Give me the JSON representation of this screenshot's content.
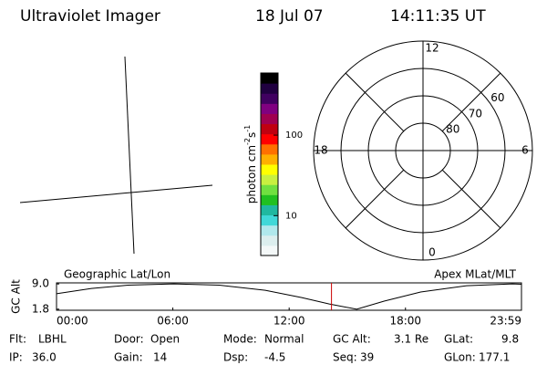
{
  "header": {
    "title": "Ultraviolet Imager",
    "date": "18 Jul 07",
    "time": "14:11:35 UT"
  },
  "colorbar": {
    "type": "colorbar",
    "label": "photon cm",
    "label_exp1": "-2",
    "label_mid": "s",
    "label_exp2": "-1",
    "log": true,
    "ylim": [
      3.2,
      590
    ],
    "yticks": [
      10,
      100
    ],
    "colors": [
      "#f4f8f8",
      "#dceeee",
      "#b0e8ec",
      "#40d8d8",
      "#20b8a0",
      "#20c020",
      "#70e040",
      "#c8f040",
      "#ffff00",
      "#ffb000",
      "#ff7000",
      "#ff0000",
      "#c00010",
      "#a00050",
      "#800080",
      "#400060",
      "#200040",
      "#000000"
    ]
  },
  "polar": {
    "type": "polar",
    "rlim": [
      90,
      50
    ],
    "circles": [
      80,
      70,
      60,
      50
    ],
    "ring_labels": [
      60,
      70,
      80
    ],
    "mlt_ticks": [
      0,
      6,
      12,
      18
    ]
  },
  "chart_data": {
    "type": "line",
    "left_label": "Geographic Lat/Lon",
    "right_label": "Apex MLat/MLT",
    "ylabel": "GC Alt",
    "xlim": [
      0,
      1439
    ],
    "xticks": [
      {
        "value": 0,
        "label": "00:00"
      },
      {
        "value": 360,
        "label": "06:00"
      },
      {
        "value": 720,
        "label": "12:00"
      },
      {
        "value": 1080,
        "label": "18:00"
      },
      {
        "value": 1439,
        "label": "23:59"
      }
    ],
    "ylim": [
      1.5,
      9.3
    ],
    "yticks": [
      {
        "value": 9.0,
        "label": "9.0"
      },
      1.8
    ],
    "x": [
      0,
      108,
      221,
      363,
      504,
      646,
      759,
      844,
      929,
      1014,
      1127,
      1269,
      1411,
      1439
    ],
    "series": [
      {
        "name": "GC Alt",
        "color": "#000000",
        "values": [
          6.2,
          7.7,
          8.65,
          9.0,
          8.65,
          7.2,
          5.1,
          3.3,
          1.8,
          4.1,
          6.7,
          8.5,
          9.0,
          8.9
        ]
      }
    ],
    "marker_time": 851,
    "marker_color": "#cc0000"
  },
  "info": [
    [
      {
        "label": "Flt:",
        "value": "LBHL"
      },
      {
        "label": "Door:",
        "value": "Open"
      },
      {
        "label": "Mode:",
        "value": "Normal"
      },
      {
        "label": "GC Alt:",
        "value": "3.1 Re"
      },
      {
        "label": "GLat:",
        "value": "9.8"
      }
    ],
    [
      {
        "label": "IP:",
        "value": "36.0"
      },
      {
        "label": "Gain:",
        "value": "14"
      },
      {
        "label": "Dsp:",
        "value": "-4.5"
      },
      {
        "label": "Seq:",
        "value": "39"
      },
      {
        "label": "GLon:",
        "value": "177.1"
      }
    ]
  ]
}
